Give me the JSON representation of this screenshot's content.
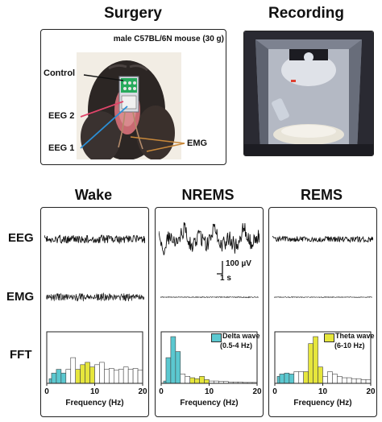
{
  "surgery": {
    "title": "Surgery",
    "subject": "male C57BL/6N mouse (30 g)",
    "labels": {
      "control": "Control",
      "eeg2": "EEG 2",
      "eeg1": "EEG 1",
      "emg": "EMG"
    },
    "colors": {
      "control": "#111111",
      "eeg2": "#e0456a",
      "eeg1": "#2b8fd6",
      "emg": "#c8883a"
    }
  },
  "recording": {
    "title": "Recording"
  },
  "row_labels": {
    "eeg": "EEG",
    "emg": "EMG",
    "fft": "FFT"
  },
  "scale_bar": {
    "amplitude": "100 µV",
    "time": "1 s"
  },
  "states": [
    {
      "name": "Wake",
      "eeg_amplitude": 0.5,
      "emg_amplitude": 0.55,
      "legend": null
    },
    {
      "name": "NREMS",
      "eeg_amplitude": 1.0,
      "emg_amplitude": 0.08,
      "legend": {
        "line1": "Delta wave",
        "line2": "(0.5-4 Hz)",
        "color": "#5bc8d0"
      }
    },
    {
      "name": "REMS",
      "eeg_amplitude": 0.35,
      "emg_amplitude": 0.06,
      "legend": {
        "line1": "Theta wave",
        "line2": "(6-10 Hz)",
        "color": "#e6e63c"
      }
    }
  ],
  "chart_data": [
    {
      "type": "bar",
      "state": "Wake",
      "xlabel": "Frequency (Hz)",
      "xlim": [
        0,
        20
      ],
      "x_ticks": [
        0,
        10,
        20
      ],
      "bins": [
        "0.5-1",
        "1-2",
        "2-3",
        "3-4",
        "4-5",
        "5-6",
        "6-7",
        "7-8",
        "8-9",
        "9-10",
        "10-11",
        "11-12",
        "12-13",
        "13-14",
        "14-15",
        "15-16",
        "16-17",
        "17-18",
        "18-19",
        "19-20"
      ],
      "values": [
        0.1,
        0.22,
        0.3,
        0.22,
        0.3,
        0.55,
        0.3,
        0.4,
        0.45,
        0.35,
        0.4,
        0.45,
        0.3,
        0.32,
        0.28,
        0.3,
        0.35,
        0.3,
        0.32,
        0.28
      ],
      "bin_colors": [
        "#5bc8d0",
        "#5bc8d0",
        "#5bc8d0",
        "#5bc8d0",
        "#ffffff",
        "#ffffff",
        "#e6e63c",
        "#e6e63c",
        "#e6e63c",
        "#e6e63c",
        "#ffffff",
        "#ffffff",
        "#ffffff",
        "#ffffff",
        "#ffffff",
        "#ffffff",
        "#ffffff",
        "#ffffff",
        "#ffffff",
        "#ffffff"
      ]
    },
    {
      "type": "bar",
      "state": "NREMS",
      "xlabel": "Frequency (Hz)",
      "xlim": [
        0,
        20
      ],
      "x_ticks": [
        0,
        10,
        20
      ],
      "bins": [
        "0.5-1",
        "1-2",
        "2-3",
        "3-4",
        "4-5",
        "5-6",
        "6-7",
        "7-8",
        "8-9",
        "9-10",
        "10-11",
        "11-12",
        "12-13",
        "13-14",
        "14-15",
        "15-16",
        "16-17",
        "17-18",
        "18-19",
        "19-20"
      ],
      "values": [
        0.05,
        0.55,
        1.0,
        0.68,
        0.2,
        0.15,
        0.12,
        0.1,
        0.15,
        0.08,
        0.05,
        0.05,
        0.04,
        0.04,
        0.03,
        0.03,
        0.03,
        0.02,
        0.02,
        0.02
      ],
      "bin_colors": [
        "#5bc8d0",
        "#5bc8d0",
        "#5bc8d0",
        "#5bc8d0",
        "#ffffff",
        "#ffffff",
        "#e6e63c",
        "#e6e63c",
        "#e6e63c",
        "#e6e63c",
        "#ffffff",
        "#ffffff",
        "#ffffff",
        "#ffffff",
        "#ffffff",
        "#ffffff",
        "#ffffff",
        "#ffffff",
        "#ffffff",
        "#ffffff"
      ]
    },
    {
      "type": "bar",
      "state": "REMS",
      "xlabel": "Frequency (Hz)",
      "xlim": [
        0,
        20
      ],
      "x_ticks": [
        0,
        10,
        20
      ],
      "bins": [
        "0.5-1",
        "1-2",
        "2-3",
        "3-4",
        "4-5",
        "5-6",
        "6-7",
        "7-8",
        "8-9",
        "9-10",
        "10-11",
        "11-12",
        "12-13",
        "13-14",
        "14-15",
        "15-16",
        "16-17",
        "17-18",
        "18-19",
        "19-20"
      ],
      "values": [
        0.15,
        0.2,
        0.22,
        0.2,
        0.25,
        0.25,
        0.25,
        0.85,
        1.0,
        0.35,
        0.15,
        0.25,
        0.2,
        0.15,
        0.12,
        0.12,
        0.1,
        0.1,
        0.08,
        0.08
      ],
      "bin_colors": [
        "#5bc8d0",
        "#5bc8d0",
        "#5bc8d0",
        "#5bc8d0",
        "#ffffff",
        "#ffffff",
        "#e6e63c",
        "#e6e63c",
        "#e6e63c",
        "#e6e63c",
        "#ffffff",
        "#ffffff",
        "#ffffff",
        "#ffffff",
        "#ffffff",
        "#ffffff",
        "#ffffff",
        "#ffffff",
        "#ffffff",
        "#ffffff"
      ]
    }
  ]
}
